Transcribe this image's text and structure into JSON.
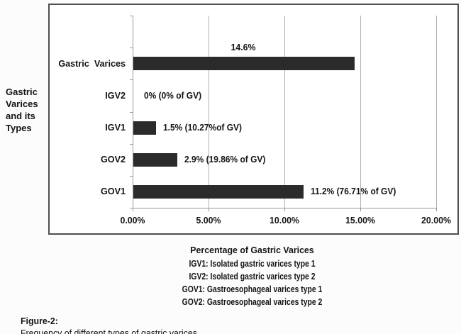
{
  "chart_data": {
    "type": "bar",
    "orientation": "horizontal",
    "categories": [
      "Gastric  Varices",
      "IGV2",
      "IGV1",
      "GOV2",
      "GOV1"
    ],
    "values": [
      14.6,
      0,
      1.5,
      2.9,
      11.2
    ],
    "data_labels": [
      "14.6%",
      "0% (0% of GV)",
      "1.5% (10.27%of GV)",
      "2.9% (19.86% of GV)",
      "11.2% (76.71% of GV)"
    ],
    "gv_share_labels": [
      "",
      "0% of GV",
      "10.27% of GV",
      "19.86% of GV",
      "76.71% of GV"
    ],
    "xlabel": "Percentage of Gastric Varices",
    "ylabel": "Gastric\nVarices\nand its\nTypes",
    "x_ticks": [
      "0.00%",
      "5.00%",
      "10.00%",
      "15.00%",
      "20.00%"
    ],
    "x_tick_values": [
      0,
      5,
      10,
      15,
      20
    ],
    "xlim": [
      0,
      20
    ],
    "grid": true,
    "legend_position": "below",
    "legend_lines": [
      "IGV1: Isolated gastric varices type 1",
      "IGV2: Isolated gastric varices type 2",
      "GOV1: Gastroesophageal varices type 1",
      "GOV2: Gastroesophageal varices type 2"
    ],
    "colors": {
      "bar": "#2b2b2b",
      "gridline": "#b3b3b3",
      "axis": "#999999",
      "frame_border": "#4f4f4f",
      "text": "#141414",
      "plot_background": "#ffffff"
    }
  },
  "caption": {
    "prefix": "Figure-2:",
    "text": "Frequency of different types of gastric varices."
  }
}
